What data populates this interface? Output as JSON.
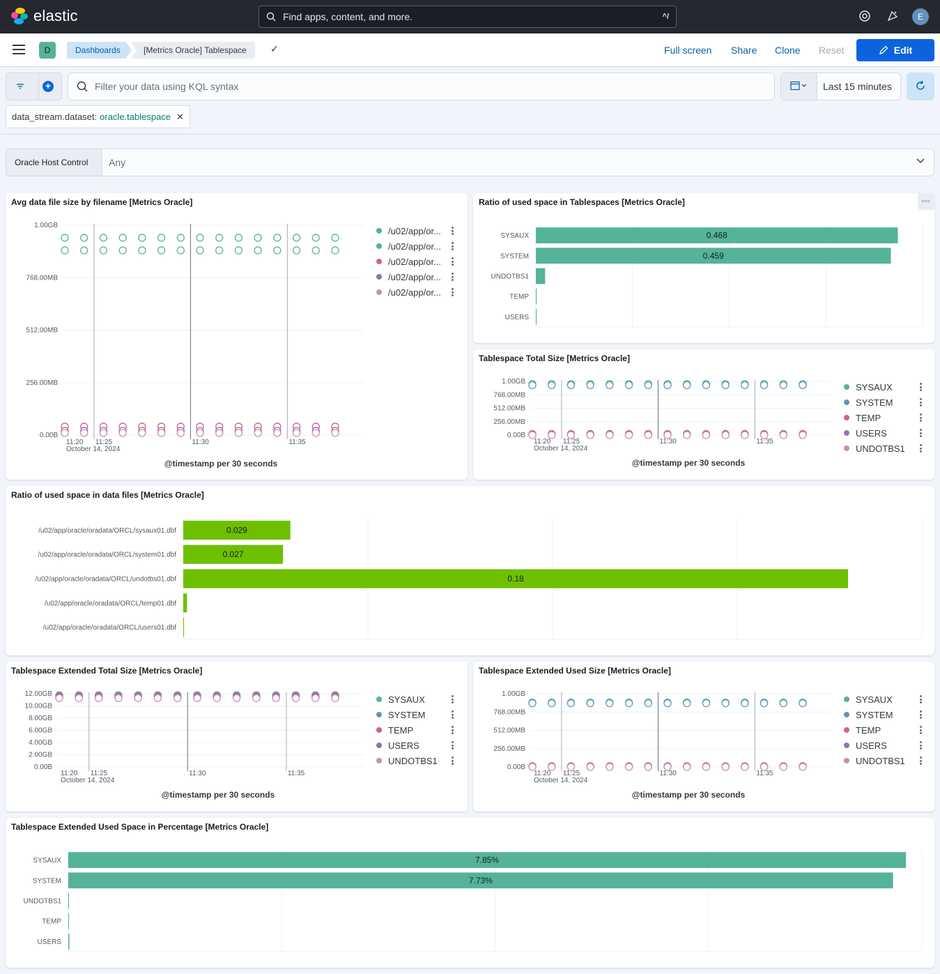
{
  "app": {
    "logo_text": "elastic"
  },
  "search": {
    "placeholder": "Find apps, content, and more.",
    "shortcut": "^/"
  },
  "header_icons": [
    "help-icon",
    "newsfeed-icon"
  ],
  "user": {
    "initial": "E"
  },
  "space": {
    "initial": "D"
  },
  "breadcrumbs": [
    "Dashboards",
    "[Metrics Oracle] Tablespace"
  ],
  "top_actions": {
    "full_screen": "Full screen",
    "share": "Share",
    "clone": "Clone",
    "reset": "Reset",
    "edit": "Edit"
  },
  "query": {
    "placeholder": "Filter your data using KQL syntax"
  },
  "time": {
    "label": "Last 15 minutes"
  },
  "filter_pill": {
    "field": "data_stream.dataset:",
    "value": "oracle.tablespace"
  },
  "control": {
    "label": "Oracle Host Control",
    "value": "Any"
  },
  "colors": {
    "green": "#54b399",
    "blue": "#6092c0",
    "red": "#d36086",
    "purple": "#9170b8",
    "pink": "#ca8eae",
    "lime": "#6dbf00",
    "accent": "#0b64dd"
  },
  "panels": {
    "avg_file": {
      "title": "Avg data file size by filename [Metrics Oracle]",
      "xtitle": "@timestamp per 30 seconds",
      "legend": [
        "/u02/app/or...",
        "/u02/app/or...",
        "/u02/app/or...",
        "/u02/app/or...",
        "/u02/app/or..."
      ]
    },
    "ratio_ts": {
      "title": "Ratio of used space in Tablespaces [Metrics Oracle]"
    },
    "ts_total": {
      "title": "Tablespace Total Size [Metrics Oracle]",
      "xtitle": "@timestamp per 30 seconds",
      "legend": [
        "SYSAUX",
        "SYSTEM",
        "TEMP",
        "USERS",
        "UNDOTBS1"
      ]
    },
    "ratio_df": {
      "title": "Ratio of used space in data files [Metrics Oracle]"
    },
    "ext_total": {
      "title": "Tablespace Extended Total Size [Metrics Oracle]",
      "xtitle": "@timestamp per 30 seconds",
      "legend": [
        "SYSAUX",
        "SYSTEM",
        "TEMP",
        "USERS",
        "UNDOTBS1"
      ]
    },
    "ext_used": {
      "title": "Tablespace Extended Used Size [Metrics Oracle]",
      "xtitle": "@timestamp per 30 seconds",
      "legend": [
        "SYSAUX",
        "SYSTEM",
        "TEMP",
        "USERS",
        "UNDOTBS1"
      ]
    },
    "ext_pct": {
      "title": "Tablespace Extended Used Space in Percentage [Metrics Oracle]"
    }
  },
  "chart_data": [
    {
      "id": "avg_file",
      "type": "scatter",
      "x_ticks": [
        "11:20",
        "11:25",
        "11:30",
        "11:35"
      ],
      "x_date": "October 14, 2024",
      "y_ticks": [
        "0.00B",
        "256.00MB",
        "512.00MB",
        "768.00MB",
        "1.00GB"
      ],
      "points_per_series": 15,
      "series": [
        {
          "name": "/u02/app/or...",
          "level": 0.94,
          "color": "#54b399"
        },
        {
          "name": "/u02/app/or...",
          "level": 0.88,
          "color": "#54b399"
        },
        {
          "name": "/u02/app/or...",
          "level": 0.04,
          "color": "#d36086"
        },
        {
          "name": "/u02/app/or...",
          "level": 0.02,
          "color": "#9170b8"
        },
        {
          "name": "/u02/app/or...",
          "level": 0.01,
          "color": "#ca8eae"
        }
      ]
    },
    {
      "id": "ratio_ts",
      "type": "bar",
      "categories": [
        "SYSAUX",
        "SYSTEM",
        "UNDOTBS1",
        "TEMP",
        "USERS"
      ],
      "values": [
        0.468,
        0.459,
        0.012,
        0.001,
        0.001
      ],
      "labels": [
        "0.468",
        "0.459",
        "",
        "",
        ""
      ],
      "xlim": [
        0,
        0.5
      ],
      "color": "#54b399"
    },
    {
      "id": "ts_total",
      "type": "scatter",
      "x_ticks": [
        "11:20",
        "11:25",
        "11:30",
        "11:35"
      ],
      "x_date": "October 14, 2024",
      "y_ticks": [
        "0.00B",
        "256.00MB",
        "512.00MB",
        "768.00MB",
        "1.00GB"
      ],
      "points_per_series": 15,
      "series": [
        {
          "name": "SYSAUX",
          "level": 0.95,
          "color": "#54b399"
        },
        {
          "name": "SYSTEM",
          "level": 0.93,
          "color": "#6092c0"
        },
        {
          "name": "TEMP",
          "level": 0.02,
          "color": "#d36086"
        },
        {
          "name": "USERS",
          "level": 0.01,
          "color": "#9170b8"
        },
        {
          "name": "UNDOTBS1",
          "level": 0.0,
          "color": "#ca8eae"
        }
      ]
    },
    {
      "id": "ratio_df",
      "type": "bar",
      "categories": [
        "/u02/app/oracle/oradata/ORCL/sysaux01.dbf",
        "/u02/app/oracle/oradata/ORCL/system01.dbf",
        "/u02/app/oracle/oradata/ORCL/undotbs01.dbf",
        "/u02/app/oracle/oradata/ORCL/temp01.dbf",
        "/u02/app/oracle/oradata/ORCL/users01.dbf"
      ],
      "values": [
        0.029,
        0.027,
        0.18,
        0.001,
        0.0002
      ],
      "labels": [
        "0.029",
        "0.027",
        "0.18",
        "",
        ""
      ],
      "xlim": [
        0,
        0.2
      ],
      "color": "#6dbf00"
    },
    {
      "id": "ext_total",
      "type": "scatter",
      "x_ticks": [
        "11:20",
        "11:25",
        "11:30",
        "11:35"
      ],
      "x_date": "October 14, 2024",
      "y_ticks": [
        "0.00B",
        "2.00GB",
        "4.00GB",
        "6.00GB",
        "8.00GB",
        "10.00GB",
        "12.00GB"
      ],
      "points_per_series": 15,
      "series": [
        {
          "name": "SYSAUX",
          "level": 0.98,
          "color": "#54b399"
        },
        {
          "name": "SYSTEM",
          "level": 0.97,
          "color": "#6092c0"
        },
        {
          "name": "TEMP",
          "level": 0.96,
          "color": "#d36086"
        },
        {
          "name": "USERS",
          "level": 0.95,
          "color": "#9170b8"
        },
        {
          "name": "UNDOTBS1",
          "level": 0.94,
          "color": "#ca8eae"
        }
      ]
    },
    {
      "id": "ext_used",
      "type": "scatter",
      "x_ticks": [
        "11:20",
        "11:25",
        "11:30",
        "11:35"
      ],
      "x_date": "October 14, 2024",
      "y_ticks": [
        "0.00B",
        "256.00MB",
        "512.00MB",
        "768.00MB",
        "1.00GB"
      ],
      "points_per_series": 15,
      "series": [
        {
          "name": "SYSAUX",
          "level": 0.88,
          "color": "#54b399"
        },
        {
          "name": "SYSTEM",
          "level": 0.87,
          "color": "#6092c0"
        },
        {
          "name": "TEMP",
          "level": 0.01,
          "color": "#d36086"
        },
        {
          "name": "USERS",
          "level": 0.005,
          "color": "#9170b8"
        },
        {
          "name": "UNDOTBS1",
          "level": 0.0,
          "color": "#ca8eae"
        }
      ]
    },
    {
      "id": "ext_pct",
      "type": "bar",
      "categories": [
        "SYSAUX",
        "SYSTEM",
        "UNDOTBS1",
        "TEMP",
        "USERS"
      ],
      "values": [
        7.85,
        7.73,
        0.0,
        0.0,
        0.01
      ],
      "labels": [
        "7.85%",
        "7.73%",
        "",
        "",
        ""
      ],
      "xlim": [
        0,
        8
      ],
      "color": "#54b399"
    }
  ]
}
